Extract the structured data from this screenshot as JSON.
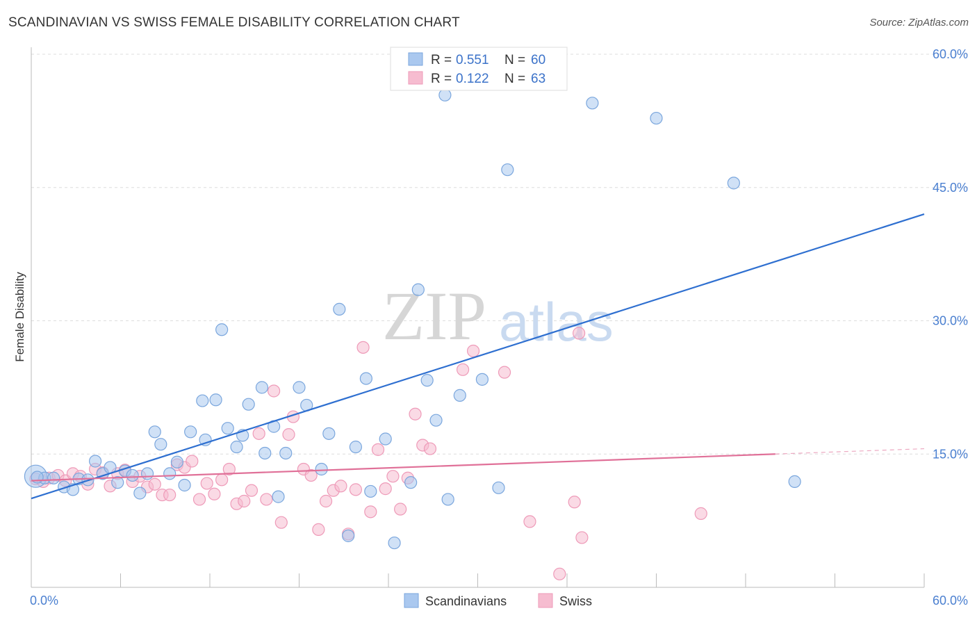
{
  "title": "SCANDINAVIAN VS SWISS FEMALE DISABILITY CORRELATION CHART",
  "source": "Source: ZipAtlas.com",
  "watermark": {
    "zip": "ZIP",
    "atlas": "atlas"
  },
  "colors": {
    "blue_fill": "#aac8ef",
    "blue_stroke": "#7aa6dd",
    "blue_line": "#2e6fd0",
    "pink_fill": "#f6bcd0",
    "pink_stroke": "#ee9ab8",
    "pink_line": "#e07098",
    "tick": "#4a7fd0",
    "grid": "#dddddd"
  },
  "legend": {
    "rows": [
      {
        "r_label": "R =",
        "r_value": "0.551",
        "n_label": "N =",
        "n_value": "60"
      },
      {
        "r_label": "R =",
        "r_value": "0.122",
        "n_label": "N =",
        "n_value": "63"
      }
    ]
  },
  "chart_data": {
    "type": "scatter",
    "title": "SCANDINAVIAN VS SWISS FEMALE DISABILITY CORRELATION CHART",
    "xlabel": "",
    "ylabel": "Female Disability",
    "xlim": [
      0,
      60
    ],
    "ylim": [
      0,
      60
    ],
    "x_tick_labels": [
      "0.0%",
      "60.0%"
    ],
    "y_ticks": [
      15,
      30,
      45,
      60
    ],
    "y_tick_labels": [
      "15.0%",
      "30.0%",
      "45.0%",
      "60.0%"
    ],
    "grid": "horizontal dashed",
    "legend_position": "top-center",
    "series": [
      {
        "name": "Scandinavians",
        "color": "#aac8ef",
        "trend": {
          "x": [
            0,
            60
          ],
          "y": [
            10.0,
            42.0
          ]
        },
        "points": [
          [
            0.3,
            12.5
          ],
          [
            0.9,
            12.3
          ],
          [
            1.5,
            12.3
          ],
          [
            2.2,
            11.3
          ],
          [
            2.8,
            11.0
          ],
          [
            3.2,
            12.2
          ],
          [
            3.8,
            12.1
          ],
          [
            4.3,
            14.2
          ],
          [
            4.8,
            12.8
          ],
          [
            5.3,
            13.5
          ],
          [
            5.8,
            11.8
          ],
          [
            6.3,
            13.1
          ],
          [
            6.8,
            12.6
          ],
          [
            7.3,
            10.6
          ],
          [
            7.8,
            12.8
          ],
          [
            8.3,
            17.5
          ],
          [
            8.7,
            16.1
          ],
          [
            9.3,
            12.8
          ],
          [
            9.8,
            14.1
          ],
          [
            10.3,
            11.5
          ],
          [
            10.7,
            17.5
          ],
          [
            11.5,
            21.0
          ],
          [
            11.7,
            16.6
          ],
          [
            12.4,
            21.1
          ],
          [
            12.8,
            29.0
          ],
          [
            13.2,
            17.9
          ],
          [
            13.8,
            15.8
          ],
          [
            14.2,
            17.1
          ],
          [
            14.6,
            20.6
          ],
          [
            15.5,
            22.5
          ],
          [
            15.7,
            15.1
          ],
          [
            16.3,
            18.1
          ],
          [
            16.6,
            10.2
          ],
          [
            17.1,
            15.1
          ],
          [
            18.0,
            22.5
          ],
          [
            18.5,
            20.5
          ],
          [
            19.5,
            13.3
          ],
          [
            20.0,
            17.3
          ],
          [
            20.7,
            31.3
          ],
          [
            21.3,
            5.8
          ],
          [
            21.8,
            15.8
          ],
          [
            22.5,
            23.5
          ],
          [
            22.8,
            10.8
          ],
          [
            23.8,
            16.7
          ],
          [
            24.4,
            5.0
          ],
          [
            25.5,
            11.8
          ],
          [
            26.0,
            33.5
          ],
          [
            26.6,
            23.3
          ],
          [
            27.2,
            18.8
          ],
          [
            27.8,
            55.4
          ],
          [
            28.0,
            9.9
          ],
          [
            28.8,
            21.6
          ],
          [
            30.3,
            23.4
          ],
          [
            31.4,
            11.2
          ],
          [
            32.0,
            47.0
          ],
          [
            37.7,
            54.5
          ],
          [
            42.0,
            52.8
          ],
          [
            47.2,
            45.5
          ],
          [
            51.3,
            11.9
          ],
          [
            0.4,
            12.4
          ]
        ]
      },
      {
        "name": "Swiss",
        "color": "#f6bcd0",
        "trend": {
          "x": [
            0,
            50
          ],
          "y": [
            12.0,
            15.0
          ]
        },
        "points": [
          [
            0.3,
            12.2
          ],
          [
            0.8,
            11.9
          ],
          [
            1.2,
            12.3
          ],
          [
            1.8,
            12.6
          ],
          [
            2.3,
            12.0
          ],
          [
            2.8,
            12.8
          ],
          [
            3.3,
            12.5
          ],
          [
            3.8,
            11.6
          ],
          [
            4.3,
            13.3
          ],
          [
            4.8,
            12.9
          ],
          [
            5.3,
            11.4
          ],
          [
            5.8,
            12.8
          ],
          [
            6.3,
            13.2
          ],
          [
            6.8,
            11.9
          ],
          [
            7.3,
            12.5
          ],
          [
            7.8,
            11.3
          ],
          [
            8.3,
            11.6
          ],
          [
            8.8,
            10.4
          ],
          [
            9.3,
            10.4
          ],
          [
            9.8,
            13.8
          ],
          [
            10.3,
            13.5
          ],
          [
            10.8,
            14.2
          ],
          [
            11.3,
            9.9
          ],
          [
            11.8,
            11.7
          ],
          [
            12.3,
            10.5
          ],
          [
            12.8,
            12.1
          ],
          [
            13.3,
            13.3
          ],
          [
            13.8,
            9.4
          ],
          [
            14.3,
            9.7
          ],
          [
            14.8,
            10.9
          ],
          [
            15.3,
            17.3
          ],
          [
            15.8,
            9.9
          ],
          [
            16.3,
            22.1
          ],
          [
            16.8,
            7.3
          ],
          [
            17.3,
            17.2
          ],
          [
            17.6,
            19.2
          ],
          [
            18.3,
            13.3
          ],
          [
            18.8,
            12.6
          ],
          [
            19.3,
            6.5
          ],
          [
            19.8,
            9.7
          ],
          [
            20.3,
            10.9
          ],
          [
            20.8,
            11.4
          ],
          [
            21.3,
            6.0
          ],
          [
            21.8,
            11.0
          ],
          [
            22.3,
            27.0
          ],
          [
            22.8,
            8.5
          ],
          [
            23.3,
            15.5
          ],
          [
            23.8,
            11.1
          ],
          [
            24.3,
            12.5
          ],
          [
            24.8,
            8.8
          ],
          [
            25.3,
            12.3
          ],
          [
            25.8,
            19.5
          ],
          [
            26.3,
            16.0
          ],
          [
            26.8,
            15.6
          ],
          [
            29.0,
            24.5
          ],
          [
            29.7,
            26.6
          ],
          [
            31.8,
            24.2
          ],
          [
            33.5,
            7.4
          ],
          [
            35.5,
            1.5
          ],
          [
            36.5,
            9.6
          ],
          [
            36.8,
            28.6
          ],
          [
            37.0,
            5.6
          ],
          [
            45.0,
            8.3
          ]
        ]
      }
    ]
  },
  "bottom_legend": [
    "Scandinavians",
    "Swiss"
  ]
}
